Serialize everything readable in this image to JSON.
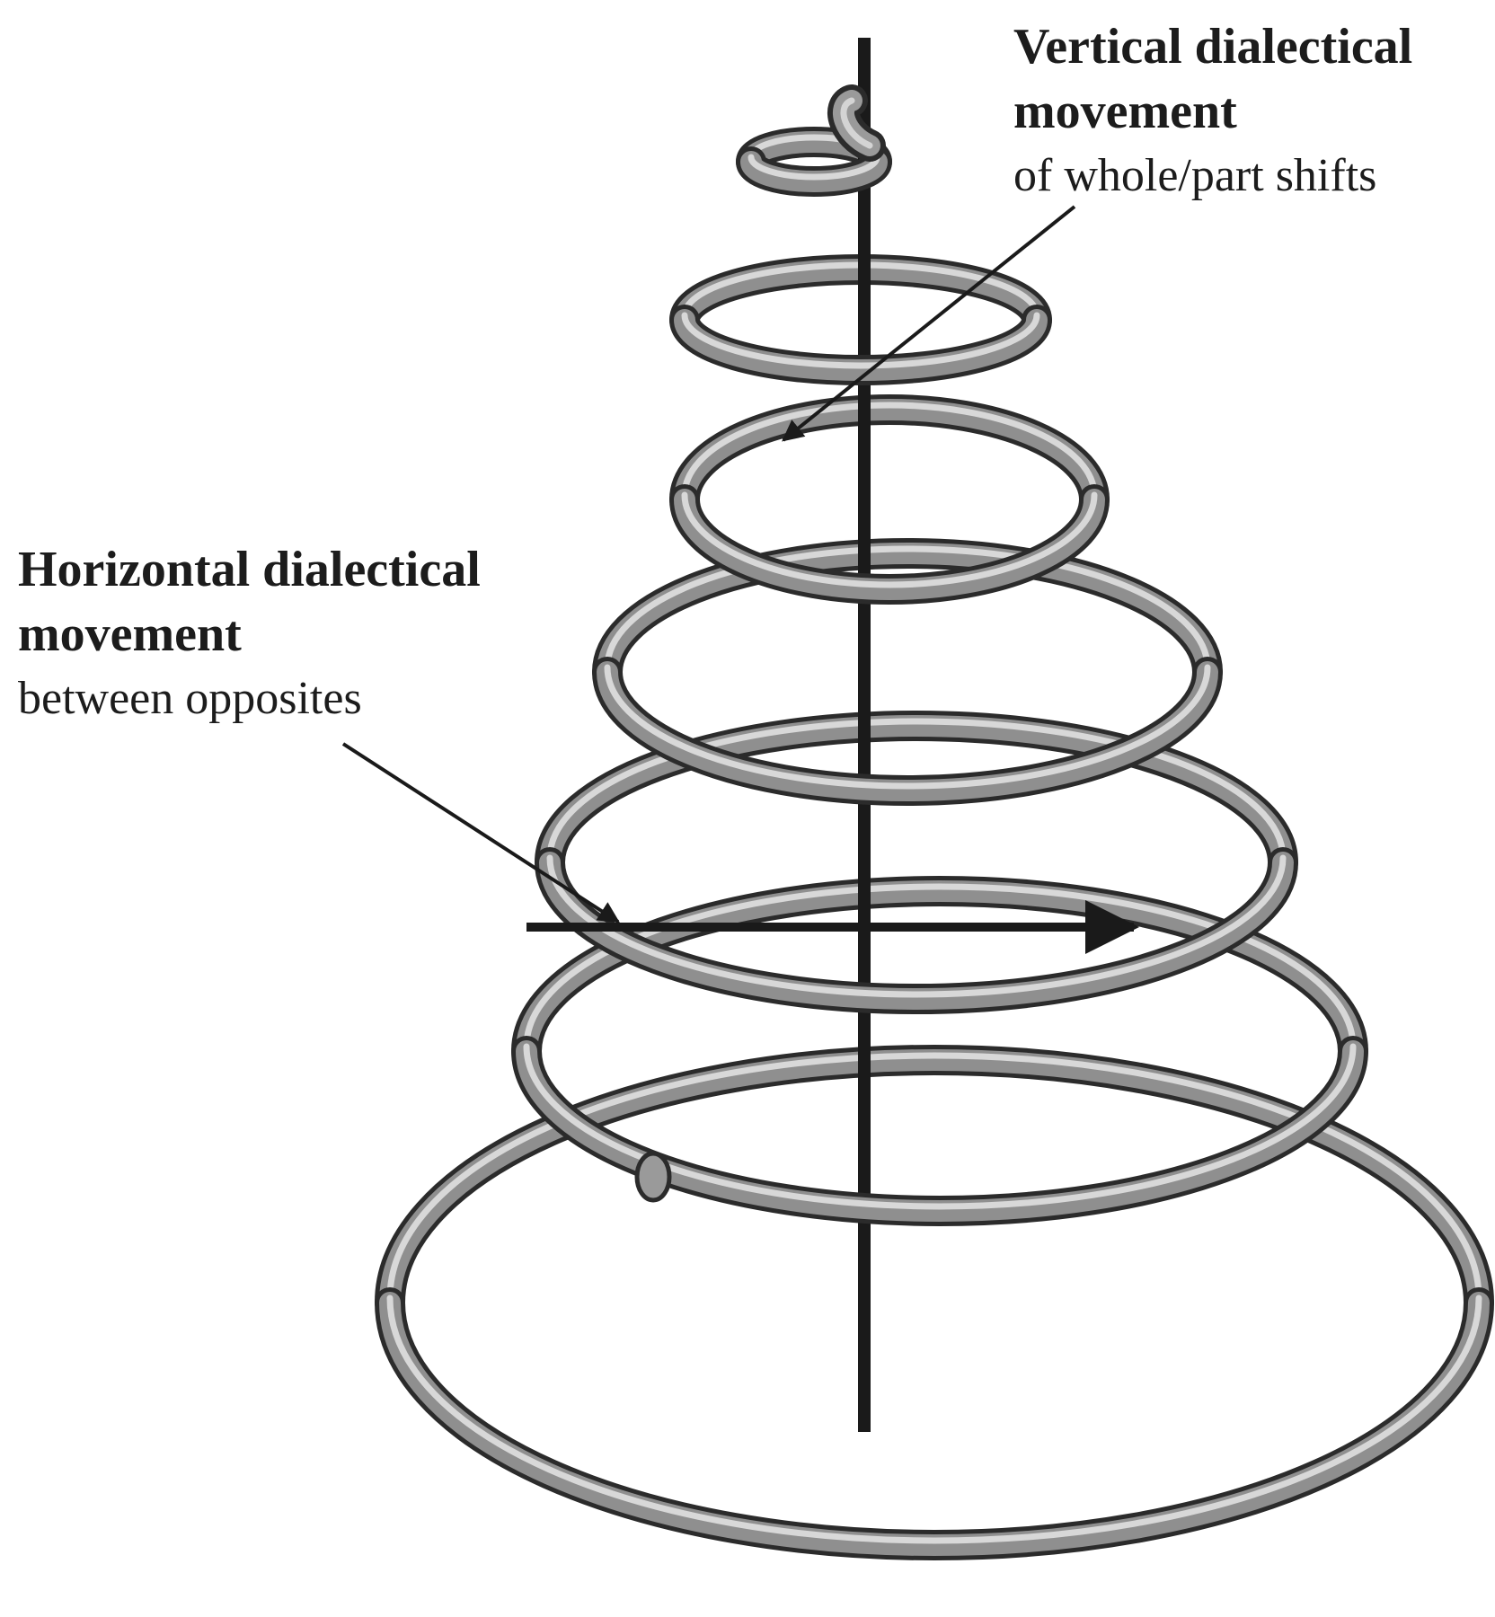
{
  "labels": {
    "vertical": {
      "title_line1": "Vertical dialectical",
      "title_line2": "movement",
      "subtitle": "of whole/part shifts"
    },
    "horizontal": {
      "title_line1": "Horizontal dialectical",
      "title_line2": "movement",
      "subtitle": "between opposites"
    }
  },
  "colors": {
    "tube_dark": "#2b2b2b",
    "tube_mid": "#8f8f8f",
    "tube_light": "#d8d8d8",
    "axis": "#1a1a1a",
    "arrow": "#1a1a1a",
    "text": "#1c1c1c"
  },
  "diagram": {
    "spiral_turns": 6,
    "tapers_toward": "top"
  }
}
